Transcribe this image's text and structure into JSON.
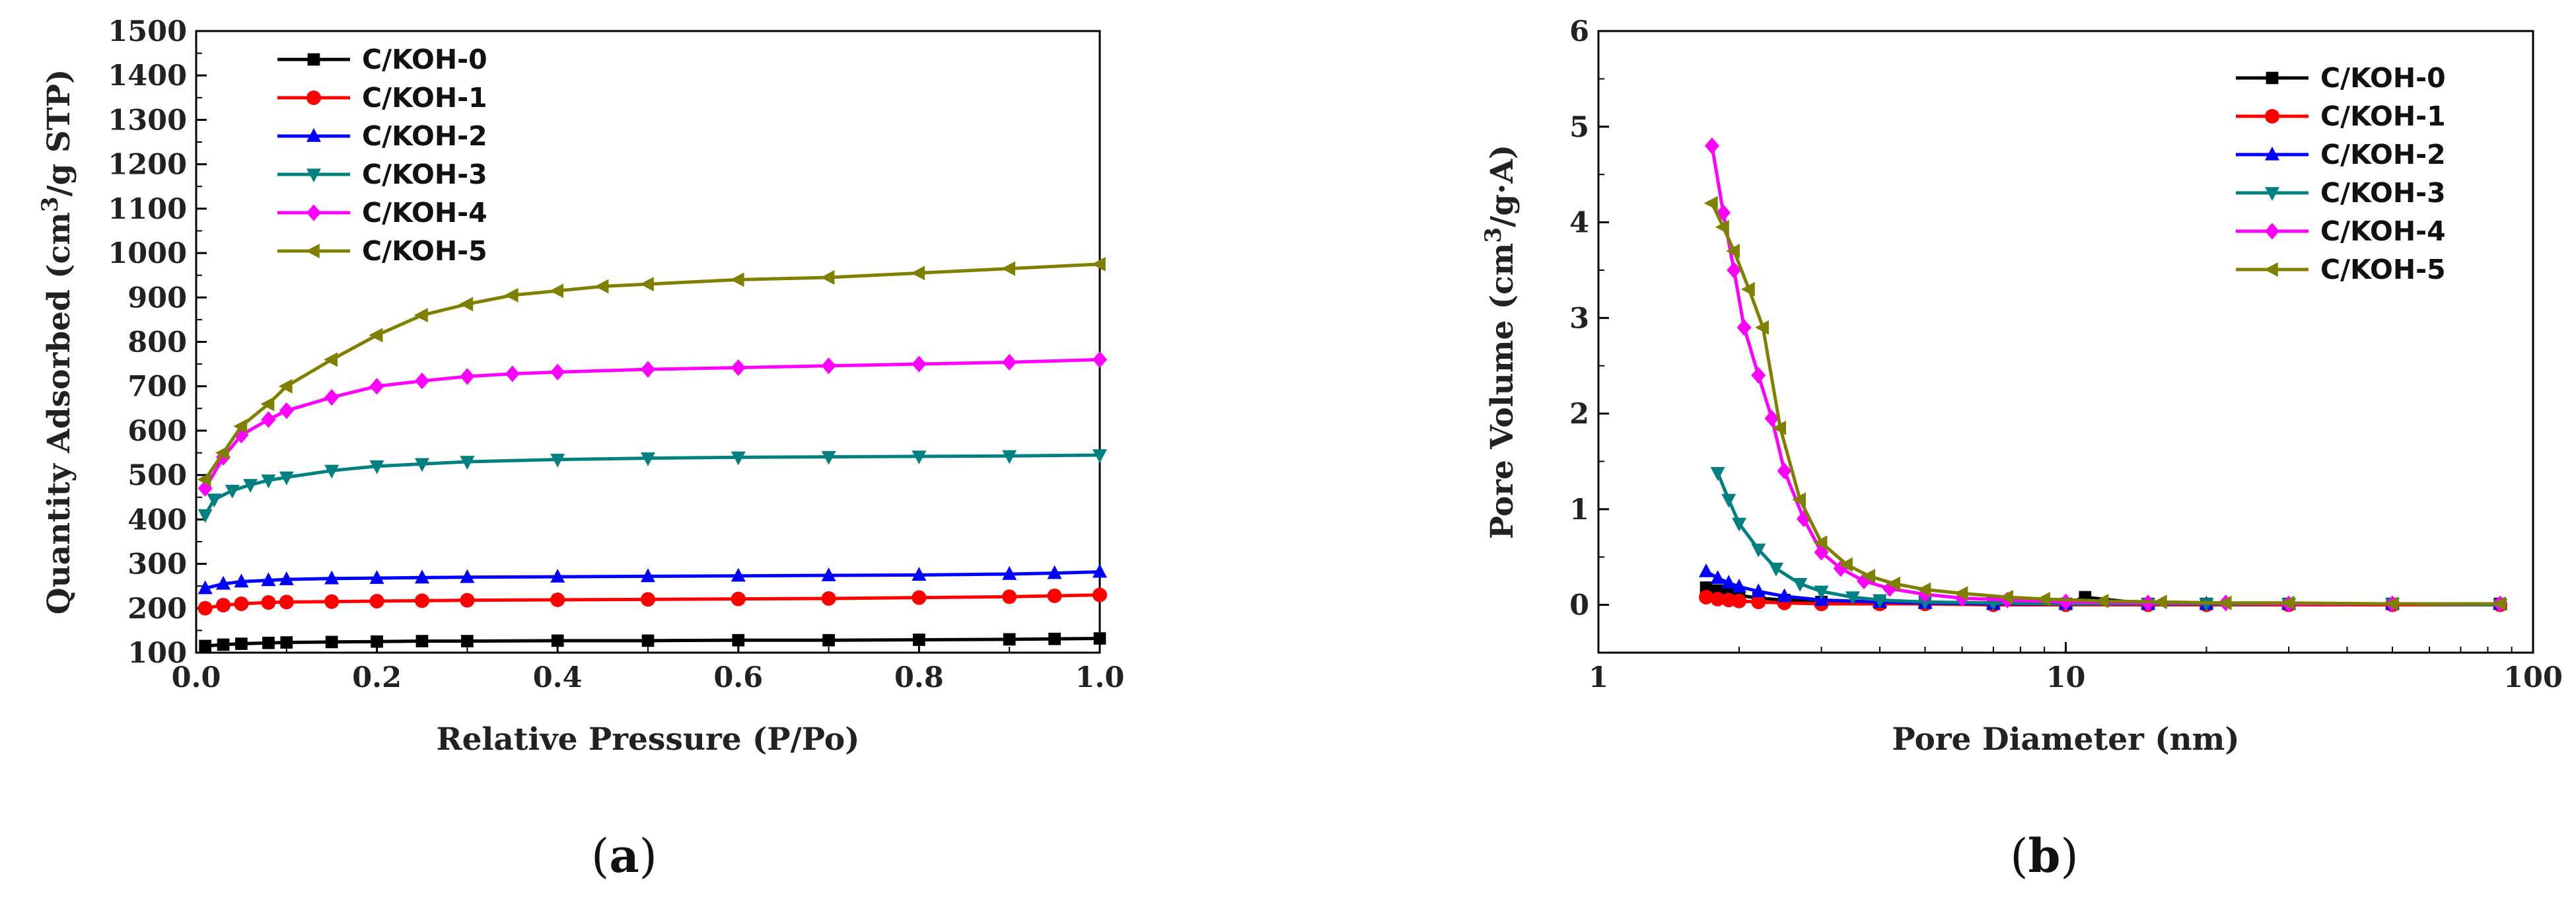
{
  "chart_data": [
    {
      "type": "line",
      "caption": "a",
      "xlabel": "Relative Pressure (P/Po)",
      "ylabel_pre": "Quantity Adsorbed (cm",
      "ylabel_sup": "3",
      "ylabel_post": "/g STP)",
      "xlim": [
        0.0,
        1.0
      ],
      "ylim": [
        100,
        1500
      ],
      "xticks": [
        "0.0",
        "0.2",
        "0.4",
        "0.6",
        "0.8",
        "1.0"
      ],
      "yticks": [
        "100",
        "200",
        "300",
        "400",
        "500",
        "600",
        "700",
        "800",
        "900",
        "1000",
        "1100",
        "1200",
        "1300",
        "1400",
        "1500"
      ],
      "legend_position": "top-left",
      "series": [
        {
          "name": "C/KOH-0",
          "color": "#000000",
          "marker": "square",
          "x": [
            0.01,
            0.03,
            0.05,
            0.08,
            0.1,
            0.15,
            0.2,
            0.25,
            0.3,
            0.4,
            0.5,
            0.6,
            0.7,
            0.8,
            0.9,
            0.95,
            1.0
          ],
          "y": [
            115,
            118,
            120,
            122,
            123,
            124,
            125,
            126,
            126,
            127,
            127,
            128,
            128,
            129,
            130,
            131,
            132
          ]
        },
        {
          "name": "C/KOH-1",
          "color": "#ff0000",
          "marker": "circle",
          "x": [
            0.01,
            0.03,
            0.05,
            0.08,
            0.1,
            0.15,
            0.2,
            0.25,
            0.3,
            0.4,
            0.5,
            0.6,
            0.7,
            0.8,
            0.9,
            0.95,
            1.0
          ],
          "y": [
            200,
            207,
            210,
            213,
            214,
            215,
            216,
            217,
            218,
            219,
            220,
            221,
            222,
            224,
            226,
            228,
            230
          ]
        },
        {
          "name": "C/KOH-2",
          "color": "#0000ff",
          "marker": "triangle-up",
          "x": [
            0.01,
            0.03,
            0.05,
            0.08,
            0.1,
            0.15,
            0.2,
            0.25,
            0.3,
            0.4,
            0.5,
            0.6,
            0.7,
            0.8,
            0.9,
            0.95,
            1.0
          ],
          "y": [
            245,
            255,
            260,
            263,
            265,
            267,
            268,
            269,
            270,
            271,
            272,
            273,
            274,
            275,
            277,
            279,
            282
          ]
        },
        {
          "name": "C/KOH-3",
          "color": "#008080",
          "marker": "triangle-down",
          "x": [
            0.01,
            0.02,
            0.04,
            0.06,
            0.08,
            0.1,
            0.15,
            0.2,
            0.25,
            0.3,
            0.4,
            0.5,
            0.6,
            0.7,
            0.8,
            0.9,
            1.0
          ],
          "y": [
            410,
            445,
            465,
            478,
            488,
            495,
            510,
            520,
            525,
            530,
            535,
            538,
            540,
            541,
            542,
            543,
            545
          ]
        },
        {
          "name": "C/KOH-4",
          "color": "#ff00ff",
          "marker": "diamond",
          "x": [
            0.01,
            0.03,
            0.05,
            0.08,
            0.1,
            0.15,
            0.2,
            0.25,
            0.3,
            0.35,
            0.4,
            0.5,
            0.6,
            0.7,
            0.8,
            0.9,
            1.0
          ],
          "y": [
            470,
            540,
            590,
            625,
            645,
            675,
            700,
            712,
            722,
            728,
            732,
            738,
            742,
            746,
            750,
            754,
            760
          ]
        },
        {
          "name": "C/KOH-5",
          "color": "#808000",
          "marker": "triangle-left",
          "x": [
            0.01,
            0.03,
            0.05,
            0.08,
            0.1,
            0.15,
            0.2,
            0.25,
            0.3,
            0.35,
            0.4,
            0.45,
            0.5,
            0.6,
            0.7,
            0.8,
            0.9,
            1.0
          ],
          "y": [
            490,
            550,
            610,
            660,
            700,
            760,
            815,
            860,
            885,
            905,
            915,
            925,
            930,
            940,
            945,
            955,
            965,
            975
          ]
        }
      ]
    },
    {
      "type": "line",
      "caption": "b",
      "xscale": "log",
      "xlabel": "Pore Diameter (nm)",
      "ylabel_pre": "Pore Volume (cm",
      "ylabel_sup": "3",
      "ylabel_post": "/g·A)",
      "xlim": [
        1,
        100
      ],
      "ylim": [
        -0.5,
        6
      ],
      "xticks": [
        "1",
        "10",
        "100"
      ],
      "yticks": [
        "0",
        "1",
        "2",
        "3",
        "4",
        "5",
        "6"
      ],
      "legend_position": "top-right",
      "series": [
        {
          "name": "C/KOH-0",
          "color": "#000000",
          "marker": "square",
          "x": [
            1.7,
            1.8,
            1.9,
            2.0,
            2.2,
            2.5,
            3.0,
            4.0,
            5.0,
            7.0,
            10.0,
            11.0,
            15.0,
            20.0,
            30.0,
            50.0,
            85.0
          ],
          "y": [
            0.18,
            0.15,
            0.12,
            0.1,
            0.07,
            0.05,
            0.03,
            0.02,
            0.02,
            0.01,
            0.01,
            0.08,
            0.01,
            0.01,
            0.01,
            0.01,
            0.01
          ]
        },
        {
          "name": "C/KOH-1",
          "color": "#ff0000",
          "marker": "circle",
          "x": [
            1.7,
            1.8,
            1.9,
            2.0,
            2.2,
            2.5,
            3.0,
            4.0,
            5.0,
            7.0,
            10.0,
            15.0,
            20.0,
            30.0,
            50.0,
            85.0
          ],
          "y": [
            0.08,
            0.06,
            0.05,
            0.04,
            0.03,
            0.02,
            0.01,
            0.01,
            0.01,
            0.0,
            0.0,
            0.0,
            0.0,
            0.0,
            0.0,
            0.0
          ]
        },
        {
          "name": "C/KOH-2",
          "color": "#0000ff",
          "marker": "triangle-up",
          "x": [
            1.7,
            1.8,
            1.9,
            2.0,
            2.2,
            2.5,
            3.0,
            4.0,
            5.0,
            7.0,
            10.0,
            15.0,
            20.0,
            30.0,
            50.0,
            85.0
          ],
          "y": [
            0.35,
            0.28,
            0.23,
            0.19,
            0.14,
            0.09,
            0.05,
            0.03,
            0.02,
            0.01,
            0.01,
            0.01,
            0.01,
            0.01,
            0.01,
            0.01
          ]
        },
        {
          "name": "C/KOH-3",
          "color": "#008080",
          "marker": "triangle-down",
          "x": [
            1.8,
            1.9,
            2.0,
            2.2,
            2.4,
            2.7,
            3.0,
            3.5,
            4.0,
            5.0,
            7.0,
            10.0,
            15.0,
            20.0,
            30.0,
            50.0,
            85.0
          ],
          "y": [
            1.38,
            1.1,
            0.85,
            0.58,
            0.38,
            0.22,
            0.14,
            0.08,
            0.05,
            0.03,
            0.02,
            0.01,
            0.01,
            0.01,
            0.01,
            0.01,
            0.0
          ]
        },
        {
          "name": "C/KOH-4",
          "color": "#ff00ff",
          "marker": "diamond",
          "x": [
            1.75,
            1.85,
            1.95,
            2.05,
            2.2,
            2.35,
            2.5,
            2.75,
            3.0,
            3.3,
            3.7,
            4.2,
            5.0,
            6.0,
            7.5,
            10.0,
            15.0,
            22.0,
            30.0,
            50.0,
            85.0
          ],
          "y": [
            4.8,
            4.1,
            3.5,
            2.9,
            2.4,
            1.95,
            1.4,
            0.9,
            0.55,
            0.38,
            0.25,
            0.17,
            0.11,
            0.07,
            0.05,
            0.03,
            0.02,
            0.02,
            0.01,
            0.01,
            0.01
          ]
        },
        {
          "name": "C/KOH-5",
          "color": "#808000",
          "marker": "triangle-left",
          "x": [
            1.75,
            1.85,
            1.95,
            2.1,
            2.25,
            2.45,
            2.7,
            3.0,
            3.4,
            3.8,
            4.3,
            5.0,
            6.0,
            7.5,
            9.0,
            12.0,
            16.0,
            22.0,
            30.0,
            50.0,
            85.0
          ],
          "y": [
            4.2,
            3.95,
            3.7,
            3.3,
            2.9,
            1.85,
            1.1,
            0.65,
            0.42,
            0.3,
            0.22,
            0.16,
            0.12,
            0.08,
            0.06,
            0.04,
            0.03,
            0.02,
            0.02,
            0.01,
            0.01
          ]
        }
      ]
    }
  ]
}
